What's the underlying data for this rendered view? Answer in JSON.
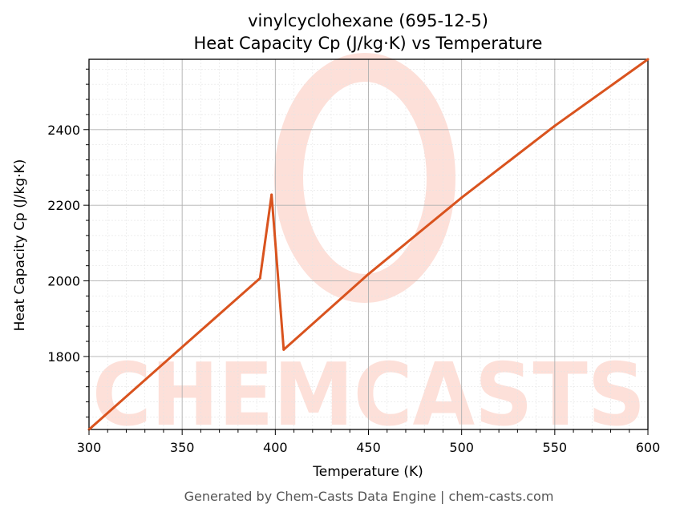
{
  "chart_data": {
    "type": "line",
    "title": "vinylcyclohexane (695-12-5)",
    "subtitle": "Heat Capacity Cp (J/kg·K) vs Temperature",
    "xlabel": "Temperature (K)",
    "ylabel": "Heat Capacity Cp (J/kg·K)",
    "xlim": [
      300,
      600
    ],
    "ylim": [
      1607,
      2586
    ],
    "x_ticks": [
      300,
      350,
      400,
      450,
      500,
      550,
      600
    ],
    "y_ticks": [
      1800,
      2000,
      2200,
      2400
    ],
    "x_tick_labels": [
      "300",
      "350",
      "400",
      "450",
      "500",
      "550",
      "600"
    ],
    "y_tick_labels": [
      "1800",
      "2000",
      "2200",
      "2400"
    ],
    "grid": true,
    "minor_grid": true,
    "line_color": "#d9531e",
    "series": [
      {
        "x": [
          300,
          391.8,
          398,
          404.5,
          450,
          500,
          550,
          600
        ],
        "y": [
          1607,
          2007,
          2228,
          1818,
          2018,
          2220,
          2410,
          2586
        ]
      }
    ]
  },
  "watermark": {
    "text": "CHEMCASTS",
    "color": "#fde0d9"
  },
  "footer": {
    "text": "Generated by Chem-Casts Data Engine | chem-casts.com"
  }
}
